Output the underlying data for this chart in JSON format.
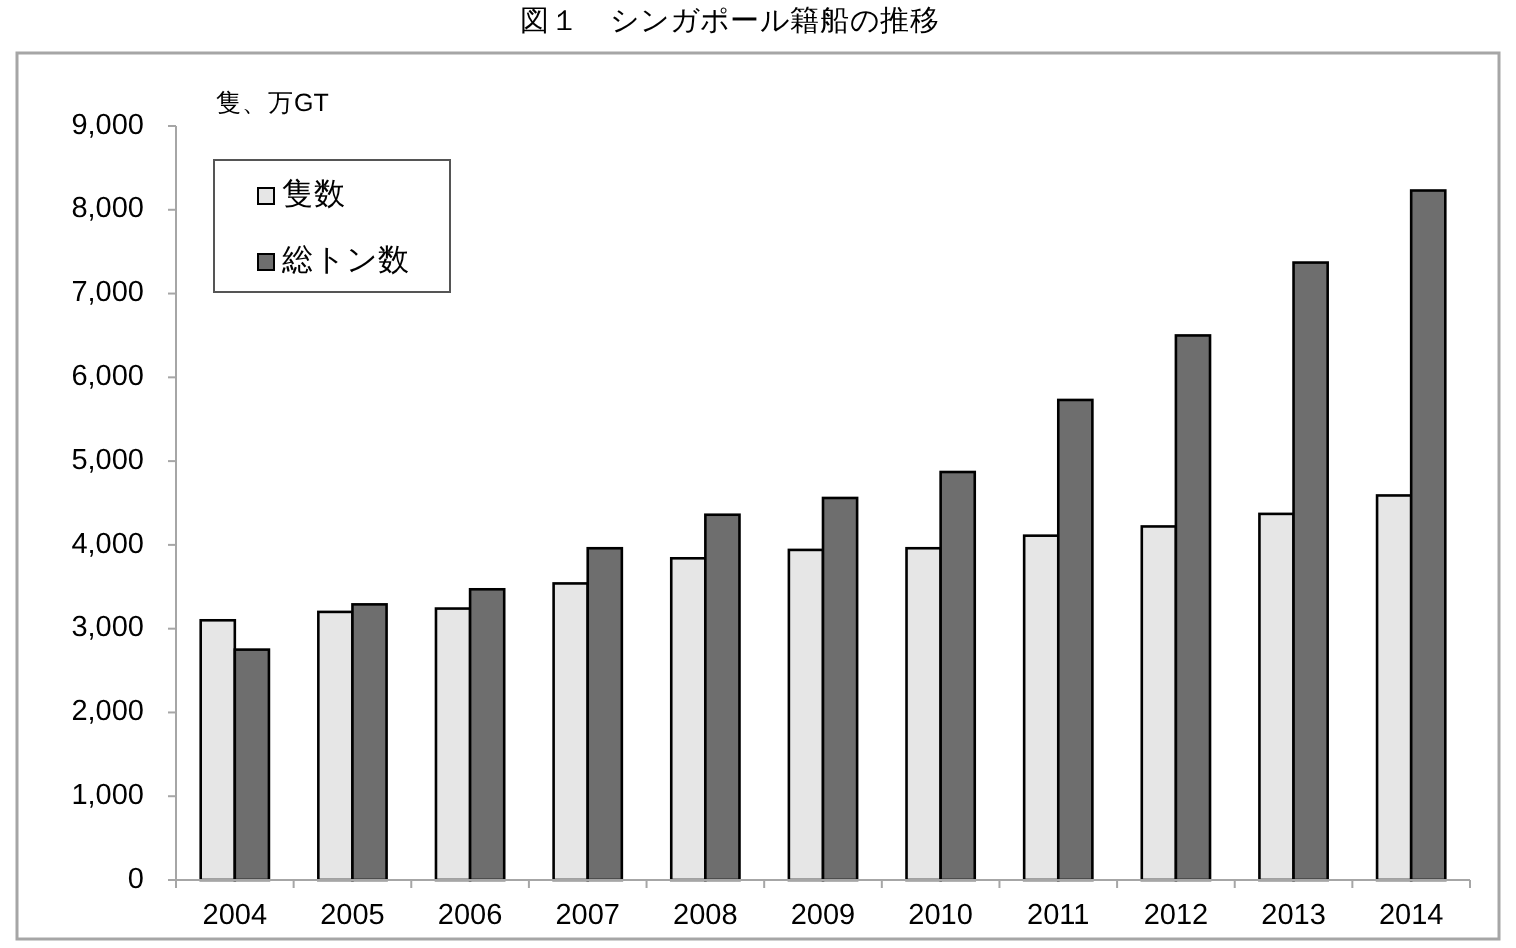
{
  "chart_data": {
    "type": "bar",
    "title": "図１　シンガポール籍船の推移",
    "ylabel": "隻、万GT",
    "categories": [
      "2004",
      "2005",
      "2006",
      "2007",
      "2008",
      "2009",
      "2010",
      "2011",
      "2012",
      "2013",
      "2014"
    ],
    "series": [
      {
        "name": "隻数",
        "color": "#e6e6e6",
        "values": [
          3100,
          3200,
          3240,
          3540,
          3840,
          3940,
          3960,
          4110,
          4220,
          4370,
          4590
        ]
      },
      {
        "name": "総トン数",
        "color": "#6e6e6e",
        "values": [
          2750,
          3290,
          3470,
          3960,
          4360,
          4560,
          4870,
          5730,
          6500,
          7370,
          8230
        ]
      }
    ],
    "ylim": [
      0,
      9000
    ],
    "yticks": [
      0,
      {
        "value": 1000,
        "label": "1,000"
      },
      {
        "value": 2000,
        "label": "2,000"
      },
      {
        "value": 3000,
        "label": "3,000"
      },
      {
        "value": 4000,
        "label": "4,000"
      },
      {
        "value": 5000,
        "label": "5,000"
      },
      {
        "value": 6000,
        "label": "6,000"
      },
      {
        "value": 7000,
        "label": "7,000"
      },
      {
        "value": 8000,
        "label": "8,000"
      },
      {
        "value": 9000,
        "label": "9,000"
      }
    ],
    "legend": "top left"
  }
}
